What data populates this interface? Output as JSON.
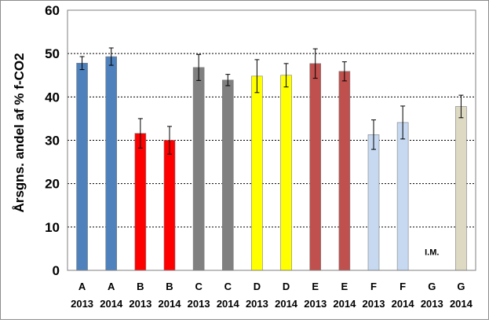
{
  "chart_data": {
    "type": "bar",
    "title": "",
    "xlabel": "",
    "ylabel": "Årsgns. andel af % f-CO2",
    "ylim": [
      0,
      60
    ],
    "yticks": [
      0,
      10,
      20,
      30,
      40,
      50,
      60
    ],
    "grid": "horizontal dashed",
    "legend": "none",
    "categories": [
      {
        "letter": "A",
        "year": "2013"
      },
      {
        "letter": "A",
        "year": "2014"
      },
      {
        "letter": "B",
        "year": "2013"
      },
      {
        "letter": "B",
        "year": "2014"
      },
      {
        "letter": "C",
        "year": "2013"
      },
      {
        "letter": "C",
        "year": "2014"
      },
      {
        "letter": "D",
        "year": "2013"
      },
      {
        "letter": "D",
        "year": "2014"
      },
      {
        "letter": "E",
        "year": "2013"
      },
      {
        "letter": "E",
        "year": "2014"
      },
      {
        "letter": "F",
        "year": "2013"
      },
      {
        "letter": "F",
        "year": "2014"
      },
      {
        "letter": "G",
        "year": "2013"
      },
      {
        "letter": "G",
        "year": "2014"
      }
    ],
    "values": [
      47.8,
      49.3,
      31.6,
      30.0,
      46.8,
      43.9,
      44.8,
      45.0,
      47.7,
      45.9,
      31.3,
      34.1,
      null,
      37.8
    ],
    "errors": [
      1.5,
      2.0,
      3.4,
      3.2,
      3.0,
      1.3,
      3.8,
      2.7,
      3.4,
      2.2,
      3.4,
      3.8,
      null,
      2.6
    ],
    "colors": [
      "#4f81bd",
      "#4f81bd",
      "#ff0000",
      "#ff0000",
      "#808080",
      "#808080",
      "#ffff00",
      "#ffff00",
      "#c0504d",
      "#c0504d",
      "#c6d9f1",
      "#c6d9f1",
      null,
      "#ddd9c3"
    ],
    "annotations": [
      {
        "category_index": 12,
        "text": "I.M."
      }
    ]
  }
}
